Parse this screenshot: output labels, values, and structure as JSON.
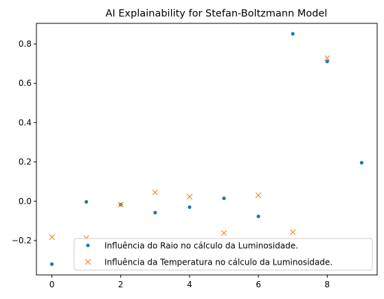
{
  "chart_data": {
    "type": "scatter",
    "title": "AI Explainability for Stefan-Boltzmann Model",
    "xlabel": "",
    "ylabel": "",
    "xlim": [
      -0.45,
      9.45
    ],
    "ylim": [
      -0.375,
      0.905
    ],
    "x_ticks": [
      0,
      2,
      4,
      6,
      8
    ],
    "y_ticks": [
      -0.2,
      0.0,
      0.2,
      0.4,
      0.6,
      0.8
    ],
    "y_tick_labels": [
      "−0.2",
      "0.0",
      "0.2",
      "0.4",
      "0.6",
      "0.8"
    ],
    "x_tick_labels": [
      "0",
      "2",
      "4",
      "6",
      "8"
    ],
    "grid": false,
    "legend_position": "bottom-right",
    "series": [
      {
        "name": "Influência do Raio no cálculo da Luminosidade.",
        "marker": "dot",
        "color": "#1f77b4",
        "x": [
          0,
          1,
          2,
          3,
          4,
          5,
          6,
          7,
          8,
          9
        ],
        "y": [
          -0.32,
          -0.003,
          -0.017,
          -0.058,
          -0.03,
          0.015,
          -0.077,
          0.852,
          0.711,
          0.196
        ]
      },
      {
        "name": "Influência da Temperatura no cálculo da Luminosidade.",
        "marker": "x",
        "color": "#ff7f0e",
        "x": [
          0,
          1,
          2,
          3,
          4,
          5,
          6,
          7,
          8
        ],
        "y": [
          -0.183,
          -0.188,
          -0.017,
          0.045,
          0.023,
          -0.162,
          0.03,
          -0.157,
          0.728
        ]
      }
    ]
  }
}
